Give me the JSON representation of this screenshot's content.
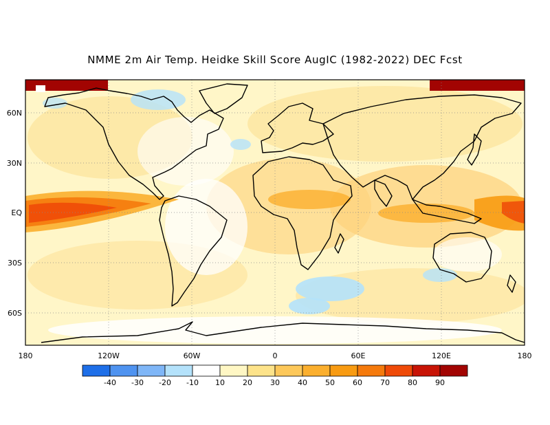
{
  "title": "NMME 2m Air Temp. Heidke Skill Score AugIC (1982-2022) DEC Fcst",
  "lat_labels": [
    "60N",
    "30N",
    "EQ",
    "30S",
    "60S"
  ],
  "lon_labels": [
    "180",
    "120W",
    "60W",
    "0",
    "60E",
    "120E",
    "180"
  ],
  "colorbar": {
    "bins": [
      {
        "color": "#1e6fe8"
      },
      {
        "color": "#4f93f0"
      },
      {
        "color": "#7fb6f7"
      },
      {
        "color": "#b4e2fb"
      },
      {
        "color": "#ffffff"
      },
      {
        "color": "#fff7c4"
      },
      {
        "color": "#fde38a"
      },
      {
        "color": "#fdc85a"
      },
      {
        "color": "#fbaf2e"
      },
      {
        "color": "#f89b12"
      },
      {
        "color": "#f57a0c"
      },
      {
        "color": "#ef4a08"
      },
      {
        "color": "#c81406"
      },
      {
        "color": "#a20402"
      }
    ],
    "ticks": [
      "-40",
      "-30",
      "-20",
      "-10",
      "10",
      "20",
      "30",
      "40",
      "50",
      "60",
      "70",
      "80",
      "90"
    ]
  },
  "colors": {
    "land_outline": "#000000",
    "grid": "#888888",
    "background": "#fff3c0"
  }
}
